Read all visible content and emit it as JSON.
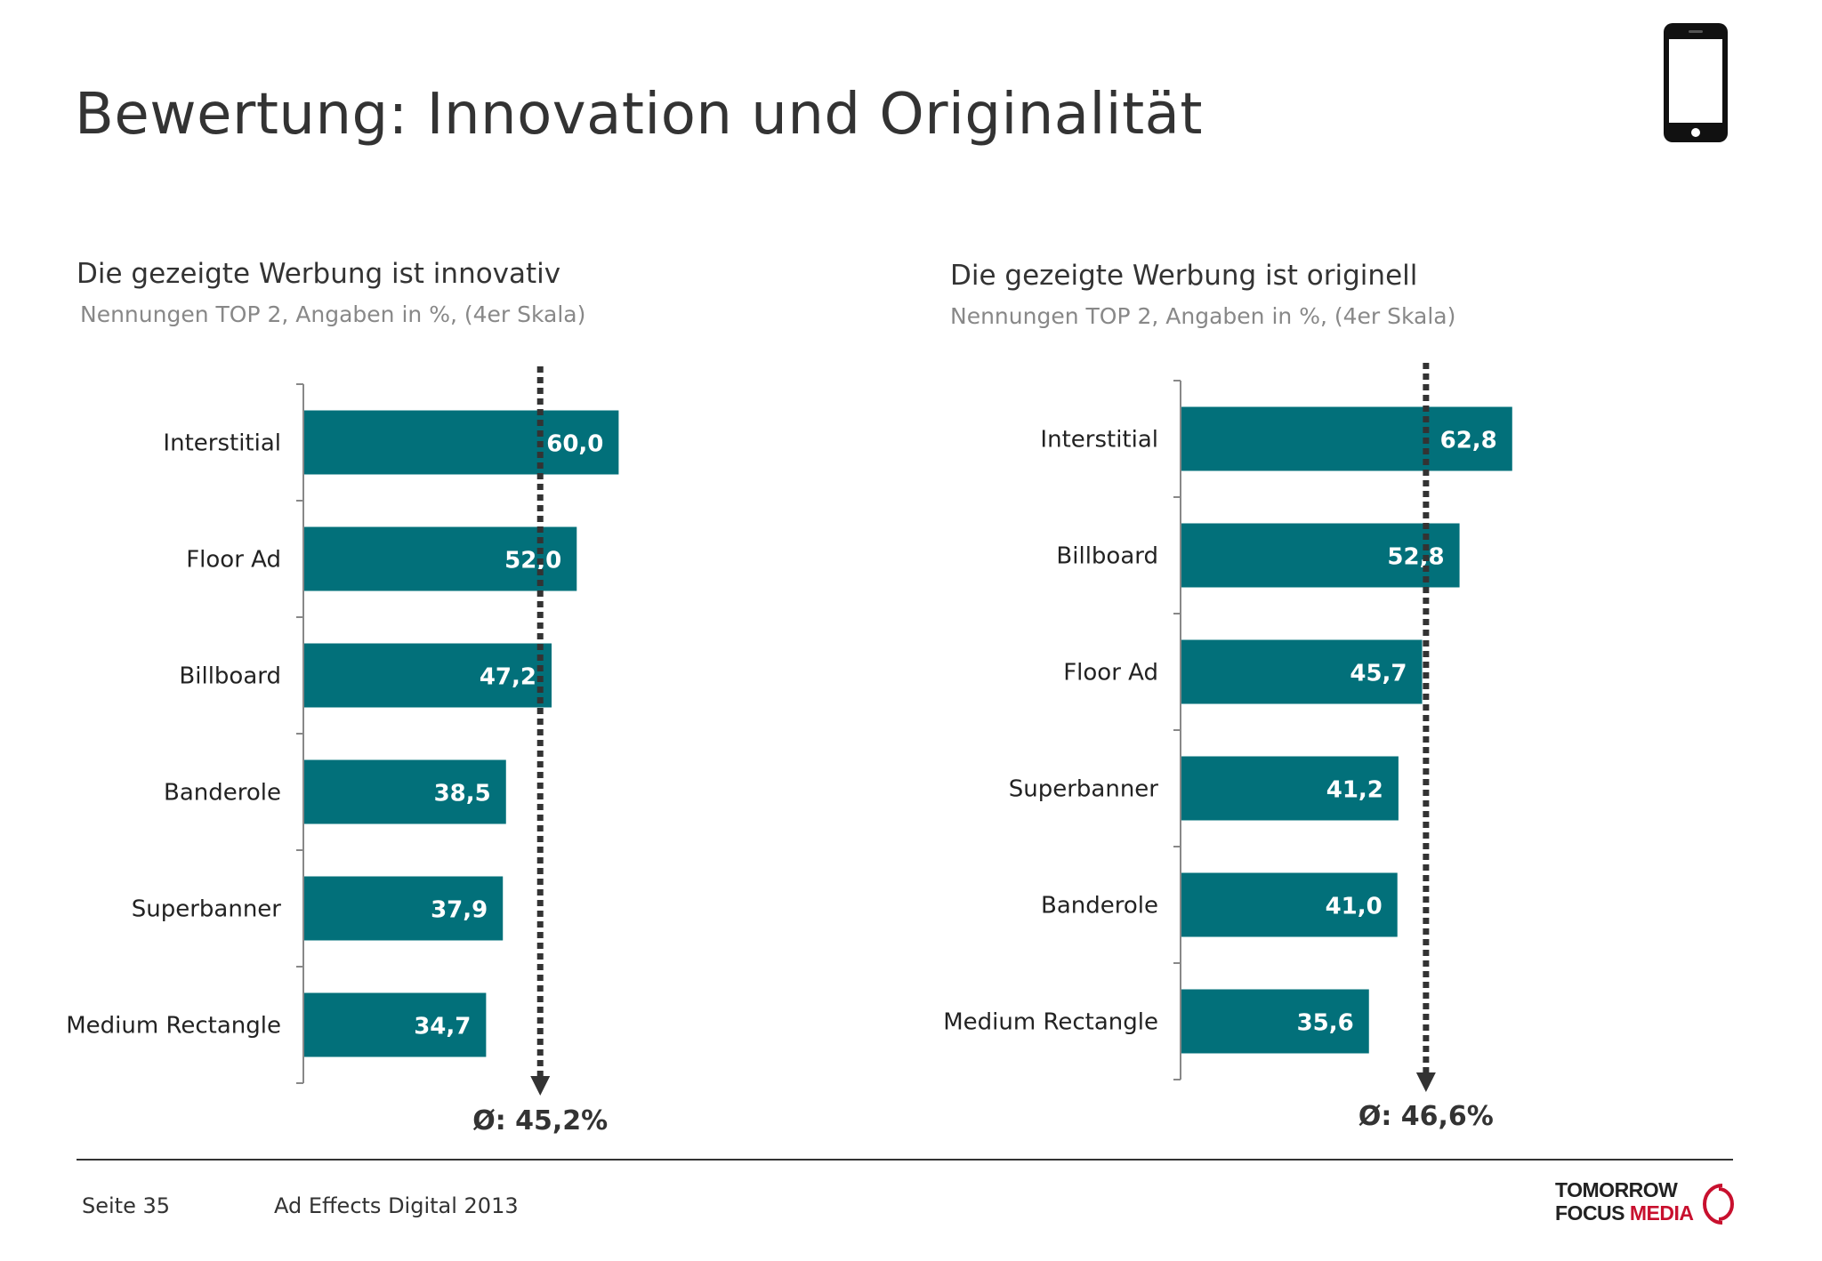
{
  "page": {
    "title": "Bewertung: Innovation und Originalität",
    "device_icon": "smartphone-icon"
  },
  "colors": {
    "bar": "#02707A",
    "marker": "#333333",
    "text": "#222222",
    "subtitle": "#888888"
  },
  "chart_data": [
    {
      "type": "bar",
      "orientation": "horizontal",
      "title": "Die gezeigte Werbung ist innovativ",
      "subtitle": "Nennungen TOP 2, Angaben in %, (4er Skala)",
      "categories": [
        "Interstitial",
        "Floor Ad",
        "Billboard",
        "Banderole",
        "Superbanner",
        "Medium Rectangle"
      ],
      "values": [
        60.0,
        52.0,
        47.2,
        38.5,
        37.9,
        34.7
      ],
      "value_labels": [
        "60,0",
        "52,0",
        "47,2",
        "38,5",
        "37,9",
        "34,7"
      ],
      "average": 45.2,
      "average_label": "Ø: 45,2%",
      "xlim": [
        0,
        100
      ],
      "grid": false,
      "legend": "none"
    },
    {
      "type": "bar",
      "orientation": "horizontal",
      "title": "Die gezeigte Werbung ist originell",
      "subtitle": "Nennungen TOP 2, Angaben in %, (4er Skala)",
      "categories": [
        "Interstitial",
        "Billboard",
        "Floor Ad",
        "Superbanner",
        "Banderole",
        "Medium Rectangle"
      ],
      "values": [
        62.8,
        52.8,
        45.7,
        41.2,
        41.0,
        35.6
      ],
      "value_labels": [
        "62,8",
        "52,8",
        "45,7",
        "41,2",
        "41,0",
        "35,6"
      ],
      "average": 46.6,
      "average_label": "Ø: 46,6%",
      "xlim": [
        0,
        100
      ],
      "grid": false,
      "legend": "none"
    }
  ],
  "footer": {
    "page_label": "Seite 35",
    "report_title": "Ad Effects Digital 2013",
    "logo_line1": "TOMORROW",
    "logo_line2_a": "FOCUS",
    "logo_line2_b": "MEDIA"
  }
}
